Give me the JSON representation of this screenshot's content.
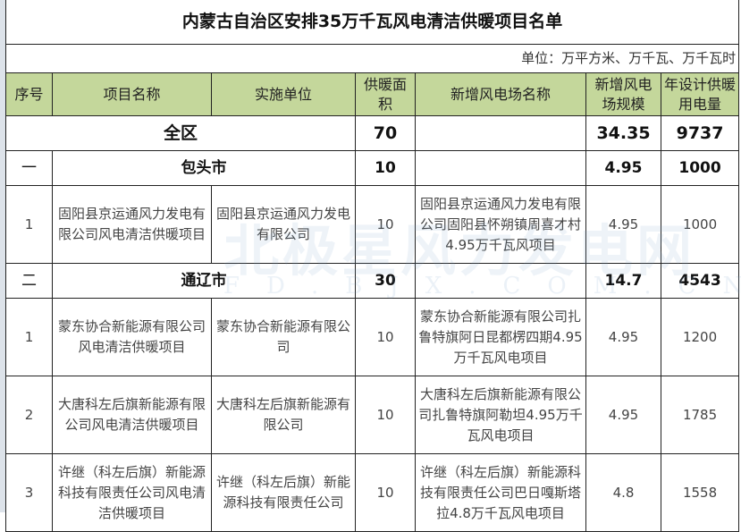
{
  "title": "内蒙古自治区安排35万千瓦风电清洁供暖项目名单",
  "unit": "单位：万平方米、万千瓦、万千瓦时",
  "headers": [
    "序号",
    "项目名称",
    "实施单位",
    "供暖面积",
    "新增风电场名称",
    "新增风电场规模",
    "年设计供暖用电量"
  ],
  "total": {
    "label": "全区",
    "area": "70",
    "scale": "34.35",
    "power": "9737"
  },
  "groups": [
    {
      "no": "一",
      "name": "包头市",
      "area": "10",
      "scale": "4.95",
      "power": "1000",
      "rows": [
        {
          "no": "1",
          "project": "固阳县京运通风力发电有限公司风电清洁供暖项目",
          "unit": "固阳县京运通风力发电有限公司",
          "area": "10",
          "farm": "固阳县京运通风力发电有限公司固阳县怀朔镇周喜才村4.95万千瓦风项目",
          "scale": "4.95",
          "power": "1000"
        }
      ]
    },
    {
      "no": "二",
      "name": "通辽市",
      "area": "30",
      "scale": "14.7",
      "power": "4543",
      "rows": [
        {
          "no": "1",
          "project": "蒙东协合新能源有限公司风电清洁供暖项目",
          "unit": "蒙东协合新能源有限公司",
          "area": "10",
          "farm": "蒙东协合新能源有限公司扎鲁特旗阿日昆都楞四期4.95万千瓦风电项目",
          "scale": "4.95",
          "power": "1200"
        },
        {
          "no": "2",
          "project": "大唐科左后旗新能源有限公司风电清洁供暖项目",
          "unit": "大唐科左后旗新能源有限公司",
          "area": "10",
          "farm": "大唐科左后旗新能源有限公司扎鲁特旗阿勒坦4.95万千瓦风电项目",
          "scale": "4.95",
          "power": "1785"
        },
        {
          "no": "3",
          "project": "许继（科左后旗）新能源科技有限责任公司风电清洁供暖项目",
          "unit": "许继（科左后旗）新能源科技有限责任公司",
          "area": "10",
          "farm": "许继（科左后旗）新能源科技有限责任公司巴日嘎斯塔拉4.8万千瓦风电项目",
          "scale": "4.8",
          "power": "1558"
        }
      ]
    }
  ],
  "watermark": {
    "name": "北极星风力发电网",
    "url": "FD.BJX.COM.CN"
  }
}
